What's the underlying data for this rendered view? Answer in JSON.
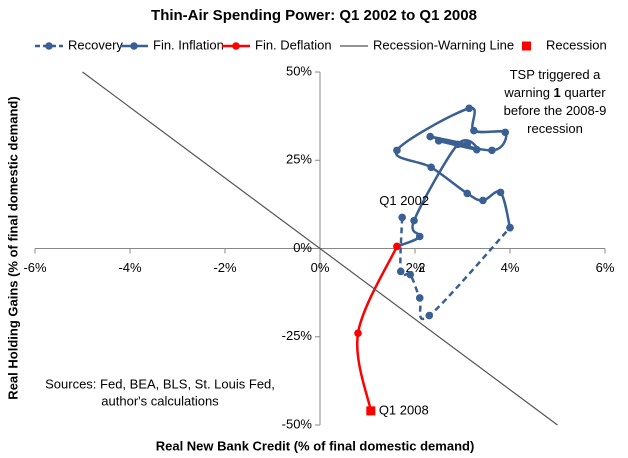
{
  "chart_data": {
    "type": "line",
    "title": "Thin-Air Spending Power: Q1 2002 to Q1 2008",
    "x_label": "Real New Bank Credit (% of final domestic demand)",
    "y_label": "Real Holding Gains (% of final domestic demand)",
    "xlim": [
      -6,
      6
    ],
    "ylim": [
      -50,
      50
    ],
    "xticks": [
      {
        "value": -6,
        "label": "-6%"
      },
      {
        "value": -4,
        "label": "-4%"
      },
      {
        "value": -2,
        "label": "-2%"
      },
      {
        "value": 0,
        "label": "0%"
      },
      {
        "value": 2,
        "label": "2%"
      },
      {
        "value": 4,
        "label": "4%"
      },
      {
        "value": 6,
        "label": "6%"
      }
    ],
    "yticks": [
      {
        "value": -50,
        "label": "-50%"
      },
      {
        "value": -25,
        "label": "-25%"
      },
      {
        "value": 0,
        "label": "0%"
      },
      {
        "value": 25,
        "label": "25%"
      },
      {
        "value": 50,
        "label": "50%"
      }
    ],
    "series": [
      {
        "name": "Recovery",
        "color": "#3a5f93",
        "dash": true,
        "marker": "circle",
        "x": [
          1.73,
          1.7,
          1.9,
          2.1,
          2.3,
          4.0
        ],
        "y": [
          8.8,
          -6.5,
          -7.4,
          -14,
          -19,
          5.9
        ]
      },
      {
        "name": "Fin. Inflation",
        "color": "#3a5f93",
        "dash": false,
        "marker": "circle",
        "x": [
          4.0,
          3.8,
          3.43,
          3.1,
          2.34,
          1.62,
          3.14,
          3.24,
          3.9,
          3.62,
          2.32,
          3.1,
          2.5,
          3.3,
          2.9,
          1.98,
          2.1,
          1.62
        ],
        "y": [
          5.9,
          15.9,
          13.6,
          15.6,
          23,
          27.8,
          39.7,
          33.4,
          32.9,
          27.8,
          31.7,
          29.5,
          30.5,
          28,
          29.5,
          7.9,
          3.4,
          0.6
        ]
      },
      {
        "name": "Fin. Deflation",
        "color": "#ff0000",
        "dash": false,
        "marker": "circle",
        "x": [
          1.62,
          0.8,
          1.07
        ],
        "y": [
          0.6,
          -24,
          -46
        ]
      },
      {
        "name": "Recession-Warning Line",
        "color": "#555555",
        "dash": false,
        "marker": "none",
        "x": [
          -5,
          5
        ],
        "y": [
          50,
          -50
        ]
      },
      {
        "name": "Recession",
        "color": "#ff0000",
        "dash": false,
        "marker": "square",
        "x": [
          1.07
        ],
        "y": [
          -46
        ]
      }
    ],
    "point_labels": [
      {
        "text": "Q1 2002",
        "x": 1.73,
        "y": 8.8
      },
      {
        "text": "2",
        "x": 1.9,
        "y": -7.4
      },
      {
        "text": "Q1 2008",
        "x": 1.07,
        "y": -46
      }
    ],
    "annotation": {
      "lines": [
        [
          "TSP triggered a"
        ],
        [
          "warning ",
          "1",
          " quarter"
        ],
        [
          "before the 2008-9"
        ],
        [
          "recession"
        ]
      ],
      "bold": "1"
    },
    "sources": [
      "Sources: Fed, BEA, BLS, St. Louis Fed,",
      "author's calculations"
    ]
  }
}
